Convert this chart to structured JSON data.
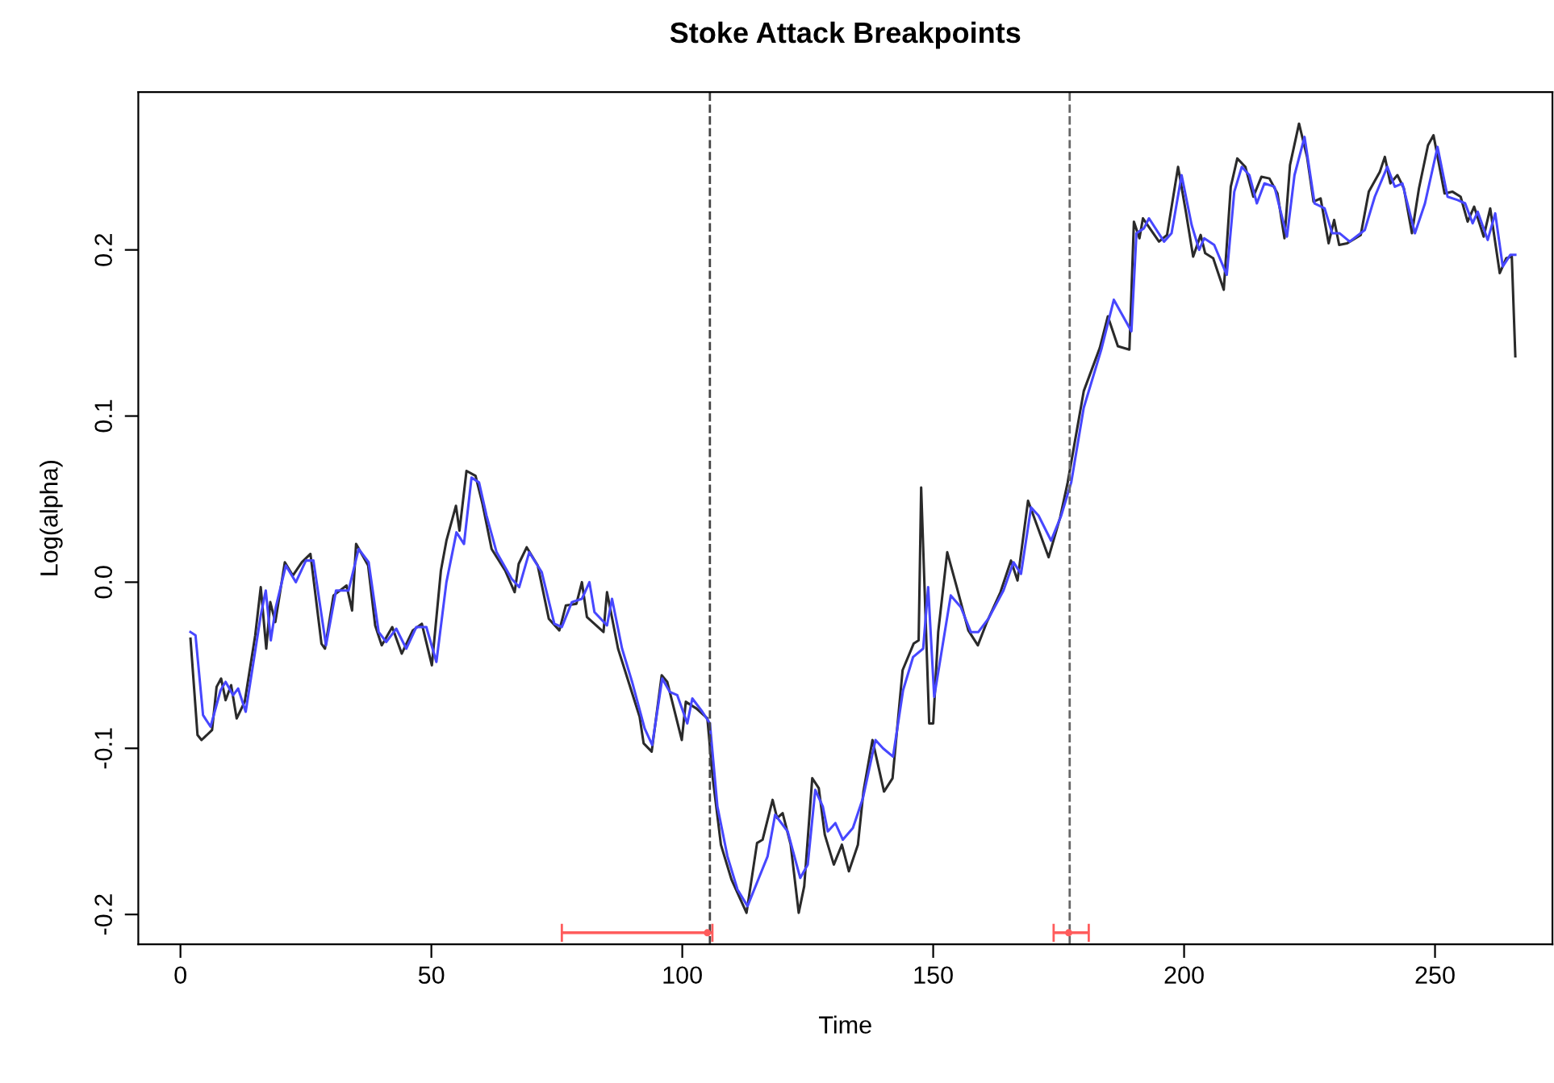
{
  "chart_data": {
    "type": "line",
    "title": "Stoke Attack Breakpoints",
    "xlabel": "Time",
    "ylabel": "Log(alpha)",
    "xlim": [
      -8.4,
      273.4
    ],
    "xticks": [
      0,
      50,
      100,
      150,
      200,
      250
    ],
    "ylim": [
      -0.218,
      0.295
    ],
    "yticks": [
      -0.2,
      -0.1,
      {
        "value": 0.0,
        "label": "0.0"
      },
      0.1,
      0.2
    ],
    "grid": false,
    "legend": false,
    "marker": "none",
    "line_style": "solid",
    "series": [
      {
        "color": "#2a2a2a",
        "x": [
          2.0,
          3.4,
          4.2,
          6.3,
          7.2,
          8.1,
          9.0,
          10.1,
          11.2,
          12.8,
          14.9,
          16.0,
          17.1,
          17.9,
          18.9,
          20.8,
          22.4,
          24.2,
          25.9,
          28.1,
          28.8,
          30.5,
          33.1,
          34.2,
          35.0,
          37.4,
          38.8,
          40.1,
          42.2,
          44.1,
          46.3,
          48.1,
          50.1,
          51.9,
          53.0,
          54.9,
          55.6,
          57.0,
          58.8,
          60.2,
          62.0,
          64.7,
          66.6,
          67.4,
          69.0,
          71.2,
          73.4,
          75.5,
          76.8,
          78.9,
          80.0,
          81.0,
          84.3,
          85.0,
          87.2,
          89.4,
          91.5,
          92.3,
          93.9,
          95.9,
          97.0,
          98.0,
          99.9,
          100.7,
          102.8,
          105.0,
          106.0,
          107.7,
          109.8,
          112.8,
          114.9,
          116.0,
          118.0,
          118.9,
          120.0,
          121.6,
          123.2,
          124.3,
          125.9,
          127.2,
          128.4,
          130.2,
          131.8,
          133.2,
          135.0,
          136.1,
          137.9,
          140.2,
          141.9,
          143.9,
          146.1,
          147.1,
          147.6,
          149.2,
          150.0,
          151.0,
          152.8,
          154.7,
          157.0,
          158.9,
          160.7,
          163.4,
          165.5,
          166.8,
          168.9,
          173.0,
          175.3,
          176.8,
          180.0,
          183.2,
          184.8,
          186.8,
          189.1,
          190.0,
          191.1,
          191.8,
          195.0,
          196.6,
          198.8,
          200.4,
          201.8,
          203.3,
          204.2,
          205.8,
          207.9,
          209.3,
          210.6,
          212.2,
          213.8,
          215.4,
          217.0,
          218.6,
          220.0,
          221.1,
          222.9,
          224.5,
          225.8,
          227.2,
          228.8,
          229.9,
          230.9,
          232.5,
          235.2,
          236.8,
          239.0,
          240.0,
          241.1,
          242.5,
          243.8,
          245.4,
          246.8,
          248.6,
          249.7,
          251.9,
          253.5,
          255.1,
          256.5,
          257.8,
          259.7,
          261.0,
          262.9,
          264.2,
          265.3,
          266.0
        ],
        "values": [
          -0.034,
          -0.092,
          -0.095,
          -0.089,
          -0.063,
          -0.058,
          -0.071,
          -0.062,
          -0.082,
          -0.072,
          -0.032,
          -0.003,
          -0.04,
          -0.012,
          -0.024,
          0.012,
          0.004,
          0.012,
          0.017,
          -0.037,
          -0.04,
          -0.008,
          -0.002,
          -0.017,
          0.023,
          0.01,
          -0.026,
          -0.038,
          -0.027,
          -0.043,
          -0.029,
          -0.025,
          -0.05,
          0.007,
          0.025,
          0.046,
          0.031,
          0.067,
          0.064,
          0.047,
          0.02,
          0.007,
          -0.006,
          0.011,
          0.021,
          0.01,
          -0.022,
          -0.029,
          -0.014,
          -0.013,
          0.0,
          -0.021,
          -0.03,
          -0.006,
          -0.04,
          -0.061,
          -0.081,
          -0.097,
          -0.102,
          -0.056,
          -0.06,
          -0.072,
          -0.095,
          -0.072,
          -0.076,
          -0.082,
          -0.116,
          -0.158,
          -0.179,
          -0.199,
          -0.157,
          -0.155,
          -0.131,
          -0.142,
          -0.139,
          -0.158,
          -0.199,
          -0.183,
          -0.118,
          -0.124,
          -0.152,
          -0.17,
          -0.158,
          -0.174,
          -0.158,
          -0.126,
          -0.095,
          -0.126,
          -0.118,
          -0.053,
          -0.037,
          -0.035,
          0.057,
          -0.085,
          -0.085,
          -0.03,
          0.018,
          -0.003,
          -0.029,
          -0.038,
          -0.024,
          -0.006,
          0.013,
          0.001,
          0.049,
          0.015,
          0.039,
          0.06,
          0.115,
          0.141,
          0.16,
          0.142,
          0.14,
          0.217,
          0.207,
          0.219,
          0.205,
          0.209,
          0.25,
          0.222,
          0.196,
          0.209,
          0.198,
          0.195,
          0.176,
          0.238,
          0.255,
          0.25,
          0.232,
          0.244,
          0.243,
          0.234,
          0.207,
          0.251,
          0.276,
          0.256,
          0.229,
          0.231,
          0.204,
          0.218,
          0.203,
          0.204,
          0.209,
          0.235,
          0.247,
          0.256,
          0.24,
          0.245,
          0.237,
          0.21,
          0.237,
          0.263,
          0.269,
          0.234,
          0.235,
          0.232,
          0.217,
          0.226,
          0.208,
          0.225,
          0.186,
          0.195,
          0.196,
          0.136
        ]
      },
      {
        "color": "#4747ff",
        "x": [
          2,
          3,
          4.5,
          6,
          8,
          9,
          10.5,
          11.5,
          13,
          16,
          17,
          18,
          19,
          21,
          23,
          25,
          26.5,
          29,
          31,
          33.5,
          35.5,
          37.5,
          39.5,
          41,
          43,
          45,
          47,
          49,
          51,
          53,
          55,
          56.5,
          58,
          59.5,
          61,
          63,
          66,
          67.5,
          69.5,
          72,
          74.5,
          76,
          78,
          80,
          81.5,
          82.5,
          85,
          86,
          88,
          90,
          92.5,
          94,
          96,
          97.5,
          99,
          101,
          102,
          104,
          105.5,
          107,
          109,
          111,
          113,
          115,
          117,
          118.5,
          121,
          123.5,
          125,
          126.5,
          128,
          129,
          130.5,
          132,
          134,
          136,
          138.5,
          140,
          142,
          144,
          146,
          148,
          149,
          150.2,
          151.5,
          153.5,
          155.5,
          157.5,
          159,
          161,
          164,
          166,
          167.5,
          169.5,
          171,
          173.5,
          175.5,
          177.5,
          180,
          183.5,
          186,
          189.5,
          190.5,
          192,
          193,
          196,
          197.5,
          199.5,
          201.5,
          203,
          204,
          206,
          208.5,
          210,
          211.5,
          213,
          214.5,
          216,
          218,
          220.5,
          222,
          224,
          226,
          228,
          229.5,
          231,
          233,
          236,
          238,
          240.5,
          242,
          243.5,
          246,
          248,
          250.5,
          252.5,
          254.5,
          256,
          257.5,
          258.5,
          260.5,
          262,
          263.5,
          265,
          266
        ],
        "values": [
          -0.03,
          -0.032,
          -0.08,
          -0.087,
          -0.065,
          -0.06,
          -0.068,
          -0.064,
          -0.078,
          -0.02,
          -0.005,
          -0.035,
          -0.015,
          0.01,
          0.0,
          0.013,
          0.013,
          -0.038,
          -0.005,
          -0.005,
          0.02,
          0.012,
          -0.03,
          -0.036,
          -0.028,
          -0.04,
          -0.027,
          -0.027,
          -0.048,
          0.0,
          0.03,
          0.023,
          0.063,
          0.06,
          0.04,
          0.018,
          0.002,
          -0.003,
          0.018,
          0.006,
          -0.025,
          -0.027,
          -0.012,
          -0.01,
          0.0,
          -0.018,
          -0.026,
          -0.01,
          -0.04,
          -0.06,
          -0.088,
          -0.098,
          -0.058,
          -0.066,
          -0.068,
          -0.085,
          -0.07,
          -0.078,
          -0.085,
          -0.135,
          -0.165,
          -0.185,
          -0.195,
          -0.18,
          -0.165,
          -0.14,
          -0.15,
          -0.178,
          -0.17,
          -0.125,
          -0.135,
          -0.15,
          -0.145,
          -0.155,
          -0.148,
          -0.13,
          -0.095,
          -0.1,
          -0.105,
          -0.065,
          -0.045,
          -0.04,
          -0.003,
          -0.069,
          -0.045,
          -0.008,
          -0.015,
          -0.03,
          -0.03,
          -0.022,
          -0.005,
          0.012,
          0.005,
          0.045,
          0.04,
          0.025,
          0.04,
          0.06,
          0.105,
          0.14,
          0.17,
          0.151,
          0.21,
          0.213,
          0.219,
          0.205,
          0.21,
          0.245,
          0.215,
          0.2,
          0.207,
          0.203,
          0.185,
          0.235,
          0.25,
          0.245,
          0.228,
          0.24,
          0.238,
          0.208,
          0.245,
          0.268,
          0.228,
          0.225,
          0.21,
          0.21,
          0.205,
          0.212,
          0.232,
          0.25,
          0.238,
          0.24,
          0.21,
          0.228,
          0.262,
          0.232,
          0.23,
          0.228,
          0.216,
          0.223,
          0.206,
          0.222,
          0.19,
          0.197,
          0.197
        ]
      },
      {
        "type": "scatter",
        "color": "#ff5c5c",
        "x": [
          105,
          177
        ],
        "values": [
          -0.211,
          -0.211
        ],
        "xerrors": [
          [
            76,
            106
          ],
          [
            174,
            181
          ]
        ],
        "marker": "circle"
      }
    ],
    "ref_lines": [
      {
        "axis": "x",
        "value": 105.5,
        "color": "#444444",
        "line_style": "dashed"
      },
      {
        "axis": "x",
        "value": 177.2,
        "color": "#666666",
        "line_style": "dashed"
      }
    ]
  }
}
